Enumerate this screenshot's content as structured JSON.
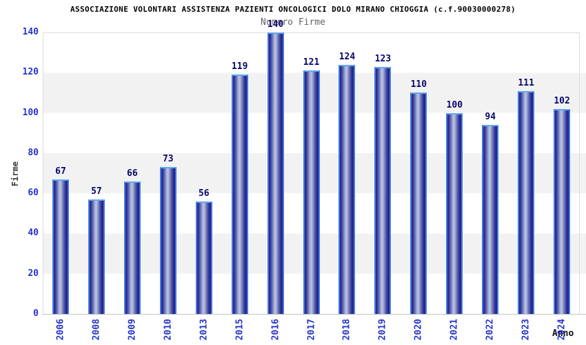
{
  "title": "ASSOCIAZIONE VOLONTARI ASSISTENZA PAZIENTI ONCOLOGICI DOLO MIRANO CHIOGGIA (c.f.90030000278)",
  "chart_data": {
    "type": "bar",
    "title": "Numero Firme",
    "xlabel": "Anno",
    "ylabel": "Firme",
    "categories": [
      "2006",
      "2008",
      "2009",
      "2010",
      "2013",
      "2015",
      "2016",
      "2017",
      "2018",
      "2019",
      "2020",
      "2021",
      "2022",
      "2023",
      "2024"
    ],
    "values": [
      67,
      57,
      66,
      73,
      56,
      119,
      140,
      121,
      124,
      123,
      110,
      100,
      94,
      111,
      102
    ],
    "ylim": [
      0,
      140
    ],
    "yticks": [
      0,
      20,
      40,
      60,
      80,
      100,
      120,
      140
    ],
    "grid": "alternating horizontal bands every 20 units",
    "legend": "none",
    "colors": {
      "bar_edge": "#3f7de0",
      "bar_dark": "#26268e",
      "bar_highlight": "#bcc4e2",
      "value_label": "#07076b",
      "axis_tick_text": "#2433cc",
      "band_gray": "#f2f2f2",
      "plot_border": "#dcdcdc",
      "subtitle_text": "#636363",
      "title_text": "#000000"
    }
  }
}
